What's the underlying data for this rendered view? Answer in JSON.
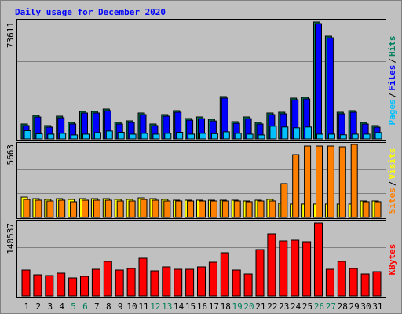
{
  "chart_data": [
    {
      "type": "bar",
      "title": "Daily usage for December 2020",
      "ylim": [
        0,
        73611
      ],
      "yticks": [
        73611
      ],
      "legend_separator": "/",
      "series": [
        {
          "name": "Hits",
          "color": "#00805c",
          "values": [
            9386,
            14820,
            8398,
            14326,
            10374,
            17290,
            17290,
            18772,
            10374,
            11362,
            16302,
            9386,
            15314,
            17784,
            12844,
            13832,
            12350,
            26676,
            10868,
            13832,
            10374,
            16302,
            16796,
            25688,
            26182,
            73611,
            64714,
            16796,
            17784,
            10374,
            8398
          ]
        },
        {
          "name": "Files",
          "color": "#0000ff",
          "values": [
            8400,
            13800,
            7400,
            13300,
            9400,
            16300,
            16300,
            17800,
            9400,
            10400,
            15300,
            8400,
            14300,
            16800,
            11800,
            12800,
            11300,
            25700,
            9800,
            12800,
            9400,
            15300,
            15800,
            24700,
            25200,
            72600,
            63700,
            15800,
            16800,
            9400,
            7400
          ]
        },
        {
          "name": "Pages",
          "color": "#00c0ff",
          "values": [
            5200,
            3200,
            3000,
            3500,
            2500,
            3000,
            4000,
            5000,
            4200,
            3000,
            3500,
            3000,
            3500,
            4200,
            3000,
            3500,
            3300,
            4500,
            3500,
            3000,
            2500,
            8000,
            7500,
            7000,
            7500,
            3000,
            3000,
            2600,
            3000,
            3000,
            4000
          ]
        }
      ]
    },
    {
      "type": "bar",
      "ylim": [
        0,
        5663
      ],
      "yticks": [
        5663
      ],
      "legend_separator": "/",
      "series": [
        {
          "name": "Visits",
          "color": "#ffff00",
          "values": [
            1580,
            1460,
            1400,
            1460,
            1400,
            1460,
            1460,
            1460,
            1400,
            1400,
            1520,
            1460,
            1400,
            1340,
            1340,
            1340,
            1340,
            1340,
            1340,
            1280,
            1340,
            1400,
            1100,
            1040,
            1040,
            1040,
            1040,
            1040,
            1040,
            1280,
            1280
          ]
        },
        {
          "name": "Sites",
          "color": "#ff8000",
          "values": [
            1400,
            1340,
            1280,
            1340,
            1220,
            1340,
            1340,
            1340,
            1280,
            1280,
            1400,
            1340,
            1280,
            1280,
            1280,
            1280,
            1280,
            1280,
            1280,
            1220,
            1280,
            1280,
            2620,
            4870,
            5540,
            5540,
            5540,
            5480,
            5663,
            1220,
            1220
          ]
        }
      ]
    },
    {
      "type": "bar",
      "ylim": [
        0,
        140537
      ],
      "yticks": [
        140537
      ],
      "categories": [
        "1",
        "2",
        "3",
        "4",
        "5",
        "6",
        "7",
        "8",
        "9",
        "10",
        "11",
        "12",
        "13",
        "14",
        "15",
        "16",
        "17",
        "18",
        "19",
        "20",
        "21",
        "22",
        "23",
        "24",
        "25",
        "26",
        "27",
        "28",
        "29",
        "30",
        "31"
      ],
      "highlight_categories": [
        "5",
        "6",
        "12",
        "13",
        "19",
        "20",
        "26",
        "27"
      ],
      "highlight_color": "#00805c",
      "series": [
        {
          "name": "KBytes",
          "color": "#ff0000",
          "values": [
            49860,
            40800,
            39290,
            43820,
            34750,
            37780,
            51370,
            66480,
            49860,
            52890,
            72530,
            48350,
            55910,
            51370,
            51370,
            55910,
            64970,
            83110,
            49860,
            42310,
            89150,
            119370,
            105770,
            107280,
            104260,
            140537,
            51370,
            66480,
            52890,
            42310,
            46840
          ]
        }
      ]
    }
  ]
}
